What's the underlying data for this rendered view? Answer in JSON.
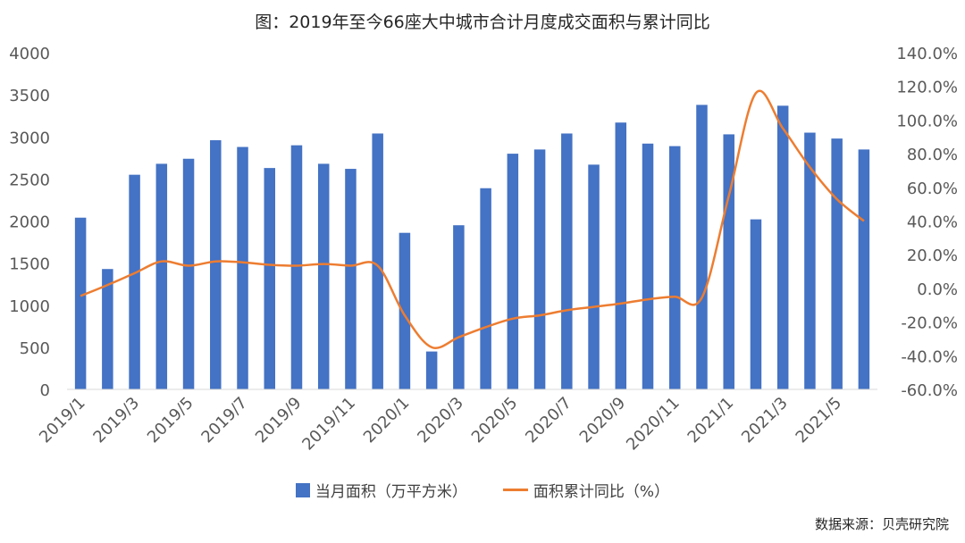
{
  "chart_data": {
    "type": "bar",
    "title": "图：2019年至今66座大中城市合计月度成交面积与累计同比",
    "source_note": "数据来源：贝壳研究院",
    "x": [
      "2019/1",
      "2019/2",
      "2019/3",
      "2019/4",
      "2019/5",
      "2019/6",
      "2019/7",
      "2019/8",
      "2019/9",
      "2019/10",
      "2019/11",
      "2019/12",
      "2020/1",
      "2020/2",
      "2020/3",
      "2020/4",
      "2020/5",
      "2020/6",
      "2020/7",
      "2020/8",
      "2020/9",
      "2020/10",
      "2020/11",
      "2020/12",
      "2021/1",
      "2021/2",
      "2021/3",
      "2021/4",
      "2021/5",
      "2021/6"
    ],
    "x_tick_labels": [
      "2019/1",
      "2019/3",
      "2019/5",
      "2019/7",
      "2019/9",
      "2019/11",
      "2020/1",
      "2020/3",
      "2020/5",
      "2020/7",
      "2020/9",
      "2020/11",
      "2021/1",
      "2021/3",
      "2021/5"
    ],
    "series": [
      {
        "name": "当月面积（万平方米）",
        "kind": "bar",
        "axis": "left",
        "color": "#4472C4",
        "values": [
          2040,
          1430,
          2550,
          2680,
          2740,
          2960,
          2880,
          2630,
          2900,
          2680,
          2620,
          3040,
          1860,
          450,
          1950,
          2390,
          2800,
          2850,
          3040,
          2670,
          3170,
          2920,
          2890,
          3380,
          3030,
          2020,
          3370,
          3050,
          2980,
          2850
        ]
      },
      {
        "name": "面积累计同比（%）",
        "kind": "line",
        "axis": "right",
        "color": "#ED7D31",
        "values": [
          -4.5,
          2.0,
          9.0,
          16.0,
          13.5,
          16.0,
          15.5,
          14.0,
          13.5,
          14.5,
          13.5,
          13.5,
          -16.0,
          -35.0,
          -29.0,
          -23.0,
          -18.0,
          -16.0,
          -13.0,
          -11.0,
          -9.0,
          -6.5,
          -5.0,
          -5.5,
          55.0,
          116.0,
          95.0,
          72.0,
          53.0,
          40.0
        ]
      }
    ],
    "y_left": {
      "ylim": [
        0,
        4000
      ],
      "ticks": [
        "0",
        "500",
        "1000",
        "1500",
        "2000",
        "2500",
        "3000",
        "3500",
        "4000"
      ]
    },
    "y_right": {
      "ylim": [
        -60,
        140
      ],
      "ticks": [
        "-60.0%",
        "-40.0%",
        "-20.0%",
        "0.0%",
        "20.0%",
        "40.0%",
        "60.0%",
        "80.0%",
        "100.0%",
        "120.0%",
        "140.0%"
      ]
    },
    "grid": false,
    "legend_position": "bottom"
  }
}
